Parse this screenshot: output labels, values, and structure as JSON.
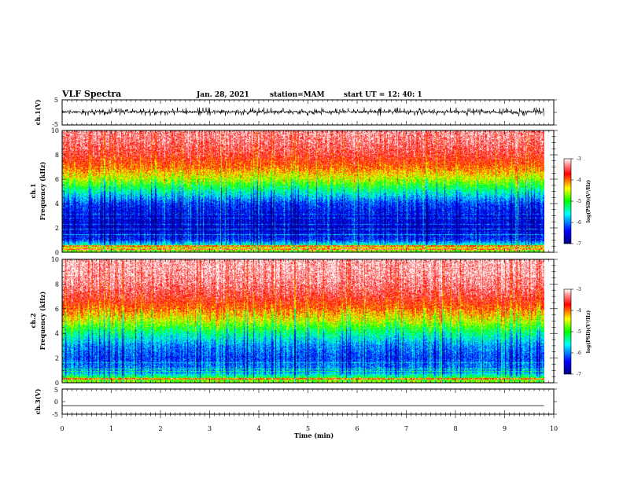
{
  "header": {
    "title": "VLF Spectra",
    "date": "Jan. 28, 2021",
    "station": "station=MAM",
    "start": "start UT =  12: 40: 1"
  },
  "chart_data": [
    {
      "type": "line",
      "name": "ch1-waveform",
      "ylabel": "ch.1(V)",
      "ylim": [
        -5,
        5
      ],
      "y_ticks": [
        "5",
        "-5"
      ],
      "xlim": [
        0,
        10
      ],
      "signal_end_min": 9.8,
      "amplitude_band_v": [
        -1.2,
        1.6
      ]
    },
    {
      "type": "heatmap",
      "name": "ch1-spectrogram",
      "ylabel": "ch.1\nFrequency (kHz)",
      "ylim": [
        0,
        10
      ],
      "y_ticks": [
        "0",
        "2",
        "4",
        "6",
        "8",
        "10"
      ],
      "xlim": [
        0,
        10
      ],
      "data_end_min": 9.8,
      "intensity_profile_vs_freq_khz": [
        [
          0.0,
          0.55
        ],
        [
          0.3,
          0.72
        ],
        [
          0.6,
          0.38
        ],
        [
          1.0,
          0.18
        ],
        [
          2.0,
          0.1
        ],
        [
          3.0,
          0.13
        ],
        [
          4.0,
          0.2
        ],
        [
          5.0,
          0.4
        ],
        [
          6.0,
          0.62
        ],
        [
          7.0,
          0.76
        ],
        [
          8.0,
          0.86
        ],
        [
          9.0,
          0.91
        ],
        [
          10.0,
          0.94
        ]
      ],
      "colorbar": {
        "label": "log(PSD)(V²/Hz)",
        "ticks": [
          "-3",
          "-4",
          "-5",
          "-6",
          "-7"
        ],
        "range": [
          -7,
          -3
        ]
      }
    },
    {
      "type": "heatmap",
      "name": "ch2-spectrogram",
      "ylabel": "ch.2\nFrequency (kHz)",
      "ylim": [
        0,
        10
      ],
      "y_ticks": [
        "0",
        "2",
        "4",
        "6",
        "8",
        "10"
      ],
      "xlim": [
        0,
        10
      ],
      "data_end_min": 9.8,
      "intensity_profile_vs_freq_khz": [
        [
          0.0,
          0.58
        ],
        [
          0.3,
          0.55
        ],
        [
          0.8,
          0.28
        ],
        [
          2.0,
          0.2
        ],
        [
          3.0,
          0.27
        ],
        [
          4.0,
          0.42
        ],
        [
          5.0,
          0.62
        ],
        [
          6.0,
          0.76
        ],
        [
          7.0,
          0.86
        ],
        [
          8.0,
          0.92
        ],
        [
          9.0,
          0.95
        ],
        [
          10.0,
          0.96
        ]
      ],
      "colorbar": {
        "label": "log(PSD)(V²/Hz)",
        "ticks": [
          "-3",
          "-4",
          "-5",
          "-6",
          "-7"
        ],
        "range": [
          -7,
          -3
        ]
      }
    },
    {
      "type": "line",
      "name": "ch3-waveform",
      "ylabel": "ch.3(V)",
      "ylim": [
        -5,
        5
      ],
      "y_ticks": [
        "5",
        "0",
        "-5"
      ],
      "xlim": [
        0,
        10
      ],
      "constant_value_v": -1.6,
      "signal_end_min": 9.8,
      "xlabel": "Time (min)",
      "x_ticks": [
        "0",
        "1",
        "2",
        "3",
        "4",
        "5",
        "6",
        "7",
        "8",
        "9",
        "10"
      ]
    }
  ],
  "colors": {
    "scale": [
      "#00007f",
      "#0000ff",
      "#00ffff",
      "#00ff00",
      "#ffff00",
      "#ff0000",
      "#ff8080",
      "#ffffff"
    ]
  }
}
